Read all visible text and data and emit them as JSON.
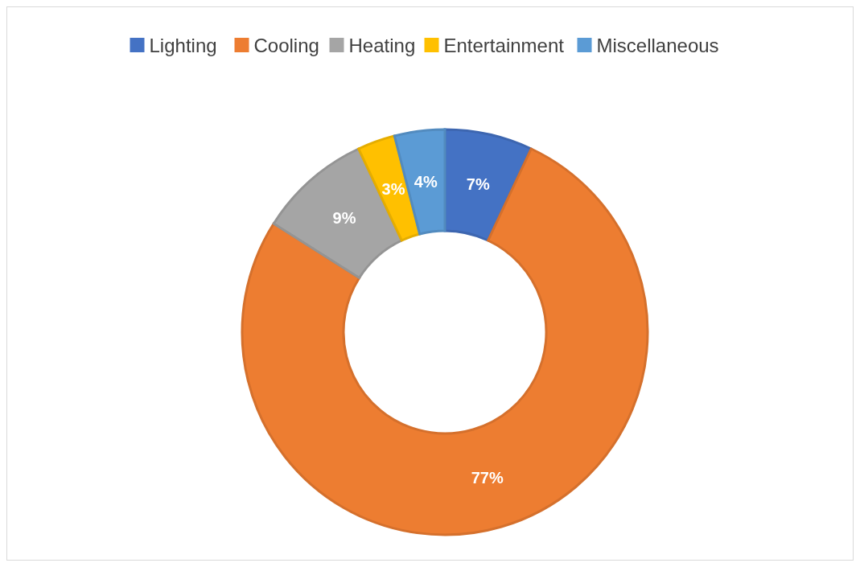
{
  "chart_data": {
    "type": "donut",
    "categories": [
      "Lighting",
      "Cooling",
      "Heating",
      "Entertainment",
      "Miscellaneous"
    ],
    "values": [
      7,
      77,
      9,
      3,
      4
    ],
    "colors": [
      "#4472c4",
      "#ed7d31",
      "#a5a5a5",
      "#ffc000",
      "#5b9bd5"
    ],
    "value_labels": [
      "7%",
      "77%",
      "9%",
      "3%",
      "4%"
    ],
    "legend": "top"
  }
}
